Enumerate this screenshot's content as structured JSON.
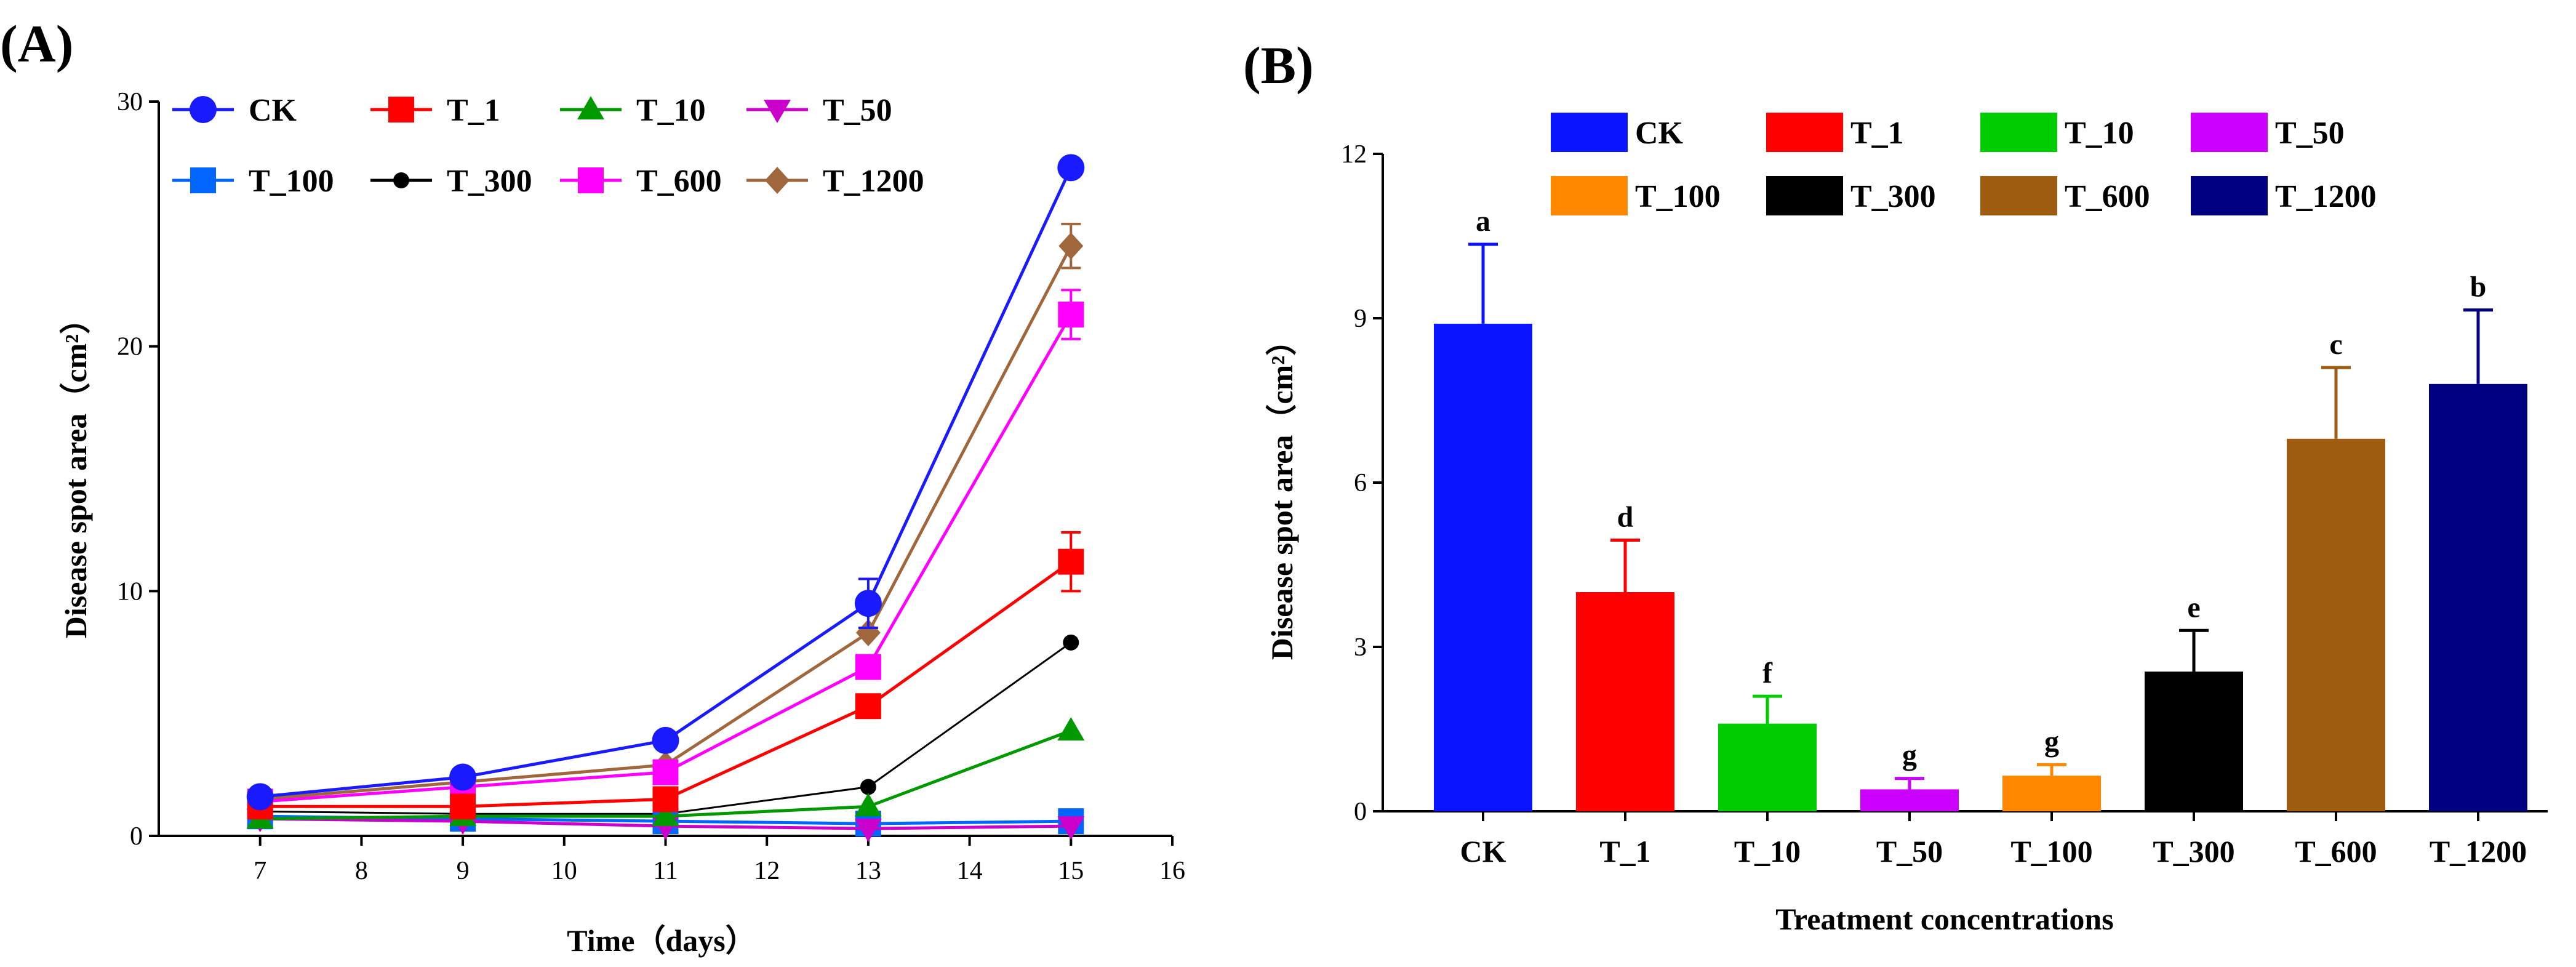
{
  "chart_data": [
    {
      "type": "line",
      "panel_label": "(A)",
      "title": "",
      "xlabel": "Time（days）",
      "ylabel": "Disease spot area（cm²）",
      "xlim": [
        6,
        16
      ],
      "ylim": [
        0,
        30
      ],
      "xticks": [
        7,
        8,
        9,
        10,
        11,
        12,
        13,
        14,
        15,
        16
      ],
      "yticks": [
        0,
        10,
        20,
        30
      ],
      "x": [
        7,
        9,
        11,
        13,
        15
      ],
      "series": [
        {
          "name": "CK",
          "color": "#1a1aff",
          "marker": "circle",
          "values": [
            1.6,
            2.4,
            3.9,
            9.5,
            27.3
          ],
          "errors": [
            0.2,
            0.2,
            0.3,
            1.0,
            0.5
          ]
        },
        {
          "name": "T_1",
          "color": "#ff0000",
          "marker": "square",
          "values": [
            1.2,
            1.2,
            1.5,
            5.3,
            11.2
          ],
          "errors": [
            0.1,
            0.1,
            0.2,
            0.4,
            1.2
          ]
        },
        {
          "name": "T_10",
          "color": "#009900",
          "marker": "triangle-up",
          "values": [
            0.7,
            0.8,
            0.8,
            1.2,
            4.3
          ],
          "errors": [
            0.1,
            0.1,
            0.1,
            0.1,
            0.2
          ]
        },
        {
          "name": "T_50",
          "color": "#cc00cc",
          "marker": "triangle-down",
          "values": [
            0.7,
            0.6,
            0.4,
            0.3,
            0.4
          ],
          "errors": [
            0.1,
            0.1,
            0.1,
            0.1,
            0.1
          ]
        },
        {
          "name": "T_100",
          "color": "#0066ff",
          "marker": "square",
          "values": [
            0.8,
            0.7,
            0.6,
            0.5,
            0.6
          ],
          "errors": [
            0.1,
            0.1,
            0.1,
            0.1,
            0.1
          ]
        },
        {
          "name": "T_300",
          "color": "#000000",
          "marker": "circle-small",
          "values": [
            1.0,
            0.9,
            0.9,
            2.0,
            7.9
          ],
          "errors": [
            0.1,
            0.1,
            0.1,
            0.1,
            0.2
          ]
        },
        {
          "name": "T_600",
          "color": "#ff00ff",
          "marker": "square",
          "values": [
            1.4,
            2.0,
            2.6,
            6.9,
            21.3
          ],
          "errors": [
            0.1,
            0.2,
            0.3,
            0.5,
            1.0
          ]
        },
        {
          "name": "T_1200",
          "color": "#a0673c",
          "marker": "diamond",
          "values": [
            1.5,
            2.2,
            2.9,
            8.3,
            24.1
          ],
          "errors": [
            0.1,
            0.2,
            0.3,
            0.5,
            0.9
          ]
        }
      ]
    },
    {
      "type": "bar",
      "panel_label": "(B)",
      "title": "",
      "xlabel": "Treatment concentrations",
      "ylabel": "Disease spot area（cm²）",
      "ylim": [
        0,
        12
      ],
      "yticks": [
        0,
        3,
        6,
        9,
        12
      ],
      "categories": [
        "CK",
        "T_1",
        "T_10",
        "T_50",
        "T_100",
        "T_300",
        "T_600",
        "T_1200"
      ],
      "values": [
        8.9,
        4.0,
        1.6,
        0.4,
        0.65,
        2.55,
        6.8,
        7.8
      ],
      "errors": [
        1.45,
        0.95,
        0.5,
        0.2,
        0.2,
        0.75,
        1.3,
        1.35
      ],
      "significance": [
        "a",
        "d",
        "f",
        "g",
        "g",
        "e",
        "c",
        "b"
      ],
      "colors": [
        "#0a14ff",
        "#ff0000",
        "#00cc00",
        "#cc00ff",
        "#ff8800",
        "#000000",
        "#9e5c10",
        "#000080"
      ]
    }
  ]
}
